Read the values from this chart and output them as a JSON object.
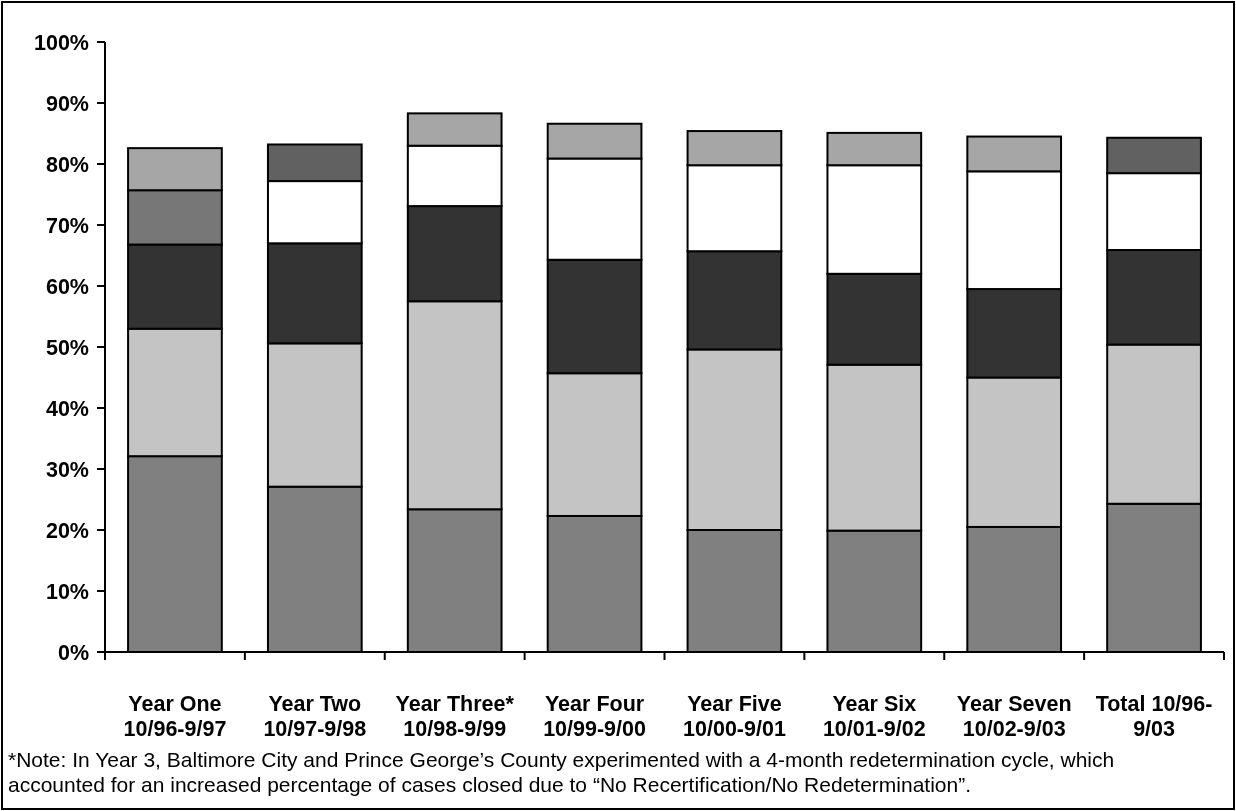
{
  "chart_data": {
    "type": "bar",
    "stacked": true,
    "categories": [
      "Year One\n10/96-9/97",
      "Year Two\n10/97-9/98",
      "Year Three*\n10/98-9/99",
      "Year Four\n10/99-9/00",
      "Year Five\n10/00-9/01",
      "Year Six\n10/01-9/02",
      "Year Seven\n10/02-9/03",
      "Total 10/96-\n9/03"
    ],
    "series": [
      {
        "color": "#808080",
        "values": [
          32.1,
          27.1,
          23.4,
          22.3,
          20.0,
          19.9,
          20.5,
          24.3
        ]
      },
      {
        "color": "#c4c4c4",
        "values": [
          20.9,
          23.5,
          34.1,
          23.4,
          29.6,
          27.2,
          24.5,
          26.1
        ]
      },
      {
        "color": "#333333",
        "values": [
          13.8,
          16.4,
          15.6,
          18.6,
          16.1,
          14.9,
          14.5,
          15.5
        ]
      },
      {
        "color": "#777777",
        "values": [
          8.9,
          null,
          null,
          null,
          null,
          null,
          null,
          null
        ]
      },
      {
        "color": "#ffffff",
        "values": [
          null,
          10.2,
          9.9,
          16.6,
          14.1,
          17.8,
          19.3,
          12.6
        ]
      },
      {
        "color": "#616161",
        "values": [
          null,
          6.0,
          null,
          null,
          null,
          null,
          null,
          5.8
        ]
      },
      {
        "color": "#a6a6a6",
        "values": [
          6.9,
          null,
          5.3,
          5.7,
          5.6,
          5.3,
          5.7,
          null
        ]
      }
    ],
    "ylim": [
      0,
      100
    ],
    "yticks": [
      {
        "value": 0,
        "label": "0%"
      },
      {
        "value": 10,
        "label": "10%"
      },
      {
        "value": 20,
        "label": "20%"
      },
      {
        "value": 30,
        "label": "30%"
      },
      {
        "value": 40,
        "label": "40%"
      },
      {
        "value": 50,
        "label": "50%"
      },
      {
        "value": 60,
        "label": "60%"
      },
      {
        "value": 70,
        "label": "70%"
      },
      {
        "value": 80,
        "label": "80%"
      },
      {
        "value": 90,
        "label": "90%"
      },
      {
        "value": 100,
        "label": "100%"
      }
    ],
    "annotations": [
      "*Note: In Year 3, Baltimore City and Prince George’s County experimented with a 4-month redetermination cycle, which accounted for an increased percentage of cases closed due to “No Recertification/No Redetermination”."
    ]
  }
}
